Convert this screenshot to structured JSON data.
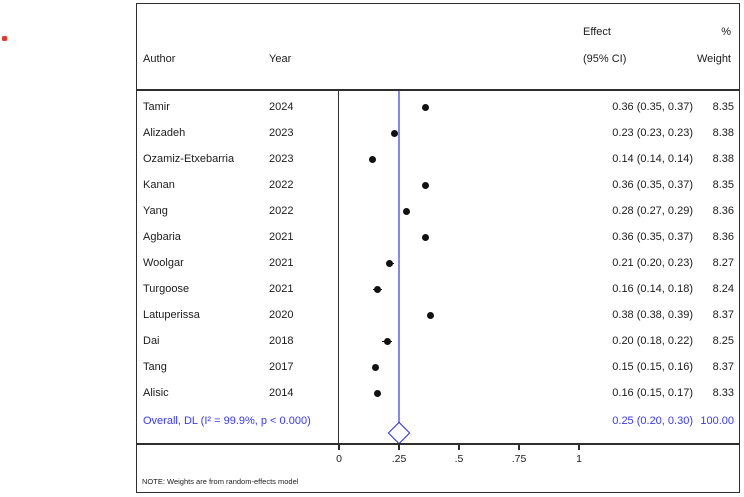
{
  "decoration": {
    "red_bullet": "•"
  },
  "colors": {
    "overall_text_blue": "#3a3af2",
    "pooled_line_blue": "#8585f7",
    "diamond_blue": "#2b2bec",
    "marker_black": "#111111",
    "frame": "#2e2e2e",
    "red_dot": "#e03a2e"
  },
  "header": {
    "author": "Author",
    "year": "Year",
    "effect_line1": "Effect",
    "effect_line2": "(95% CI)",
    "weight_line1": "%",
    "weight_line2": "Weight"
  },
  "note": "NOTE: Weights are from random-effects model",
  "chart_data": {
    "type": "scatter",
    "subtype": "forest-plot",
    "title": "",
    "xlabel": "",
    "ylabel": "",
    "xlim": [
      0,
      1
    ],
    "x_ticks": [
      0,
      0.25,
      0.5,
      0.75,
      1
    ],
    "x_tick_labels": [
      "0",
      ".25",
      ".5",
      ".75",
      "1"
    ],
    "reference_line_x": 0.25,
    "grid": false,
    "legend_position": "none",
    "studies": [
      {
        "author": "Tamir",
        "year": "2024",
        "effect": 0.36,
        "ci_low": 0.35,
        "ci_high": 0.37,
        "effect_label": "0.36 (0.35, 0.37)",
        "weight": 8.35,
        "weight_label": "8.35"
      },
      {
        "author": "Alizadeh",
        "year": "2023",
        "effect": 0.23,
        "ci_low": 0.23,
        "ci_high": 0.23,
        "effect_label": "0.23 (0.23, 0.23)",
        "weight": 8.38,
        "weight_label": "8.38"
      },
      {
        "author": "Ozamiz-Etxebarria",
        "year": "2023",
        "effect": 0.14,
        "ci_low": 0.14,
        "ci_high": 0.14,
        "effect_label": "0.14 (0.14, 0.14)",
        "weight": 8.38,
        "weight_label": "8.38"
      },
      {
        "author": "Kanan",
        "year": "2022",
        "effect": 0.36,
        "ci_low": 0.35,
        "ci_high": 0.37,
        "effect_label": "0.36 (0.35, 0.37)",
        "weight": 8.35,
        "weight_label": "8.35"
      },
      {
        "author": "Yang",
        "year": "2022",
        "effect": 0.28,
        "ci_low": 0.27,
        "ci_high": 0.29,
        "effect_label": "0.28 (0.27, 0.29)",
        "weight": 8.36,
        "weight_label": "8.36"
      },
      {
        "author": "Agbaria",
        "year": "2021",
        "effect": 0.36,
        "ci_low": 0.35,
        "ci_high": 0.37,
        "effect_label": "0.36 (0.35, 0.37)",
        "weight": 8.36,
        "weight_label": "8.36"
      },
      {
        "author": "Woolgar",
        "year": "2021",
        "effect": 0.21,
        "ci_low": 0.2,
        "ci_high": 0.23,
        "effect_label": "0.21 (0.20, 0.23)",
        "weight": 8.27,
        "weight_label": "8.27"
      },
      {
        "author": "Turgoose",
        "year": "2021",
        "effect": 0.16,
        "ci_low": 0.14,
        "ci_high": 0.18,
        "effect_label": "0.16 (0.14, 0.18)",
        "weight": 8.24,
        "weight_label": "8.24"
      },
      {
        "author": "Latuperissa",
        "year": "2020",
        "effect": 0.38,
        "ci_low": 0.38,
        "ci_high": 0.39,
        "effect_label": "0.38 (0.38, 0.39)",
        "weight": 8.37,
        "weight_label": "8.37"
      },
      {
        "author": "Dai",
        "year": "2018",
        "effect": 0.2,
        "ci_low": 0.18,
        "ci_high": 0.22,
        "effect_label": "0.20 (0.18, 0.22)",
        "weight": 8.25,
        "weight_label": "8.25"
      },
      {
        "author": "Tang",
        "year": "2017",
        "effect": 0.15,
        "ci_low": 0.15,
        "ci_high": 0.16,
        "effect_label": "0.15 (0.15, 0.16)",
        "weight": 8.37,
        "weight_label": "8.37"
      },
      {
        "author": "Alisic",
        "year": "2014",
        "effect": 0.16,
        "ci_low": 0.15,
        "ci_high": 0.17,
        "effect_label": "0.16 (0.15, 0.17)",
        "weight": 8.33,
        "weight_label": "8.33"
      }
    ],
    "overall": {
      "label": "Overall, DL (I² = 99.9%, p < 0.000)",
      "effect": 0.25,
      "ci_low": 0.2,
      "ci_high": 0.3,
      "effect_label": "0.25 (0.20, 0.30)",
      "weight": 100.0,
      "weight_label": "100.00"
    }
  }
}
